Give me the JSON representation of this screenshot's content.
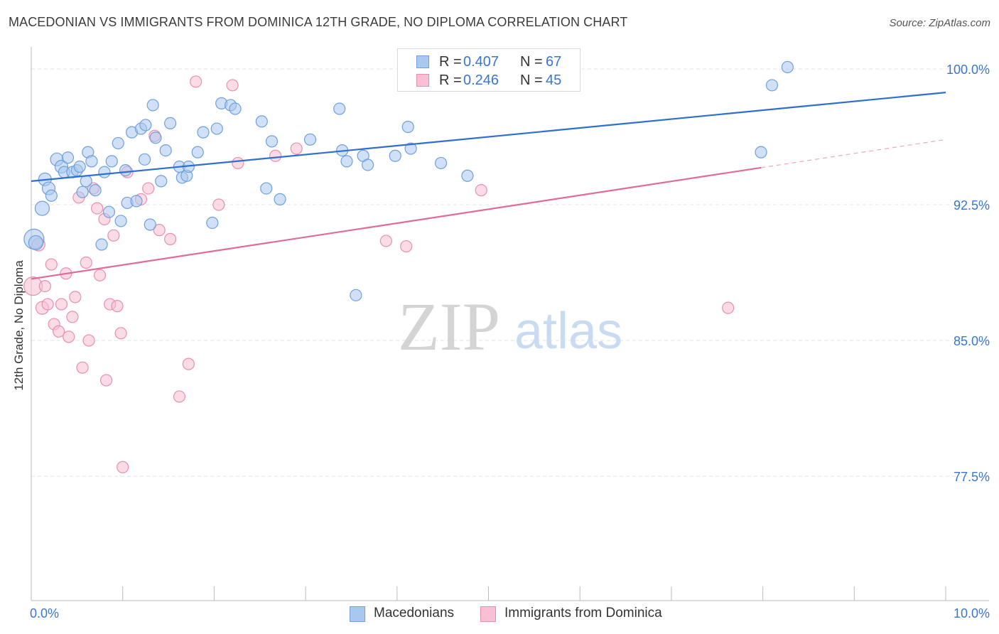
{
  "header": {
    "title": "MACEDONIAN VS IMMIGRANTS FROM DOMINICA 12TH GRADE, NO DIPLOMA CORRELATION CHART",
    "source": "Source: ZipAtlas.com"
  },
  "legend_top": {
    "rows": [
      {
        "r_key": "R =",
        "r_value": "0.407",
        "n_key": "N =",
        "n_value": "67"
      },
      {
        "r_key": "R =",
        "r_value": "0.246",
        "n_key": "N =",
        "n_value": "45"
      }
    ]
  },
  "legend_bottom": {
    "items": [
      {
        "label": "Macedonians"
      },
      {
        "label": "Immigrants from Dominica"
      }
    ]
  },
  "watermark": {
    "zip": "ZIP",
    "atlas": "atlas"
  },
  "colors": {
    "blue_fill": "#a9c8f0",
    "blue_stroke": "#6f9fdc",
    "blue_line": "#2f6fd0",
    "pink_fill": "#f8c0d2",
    "pink_stroke": "#e88faf",
    "pink_line": "#e06b98",
    "tick_label": "#3a76d0",
    "grid": "#e3e3e3"
  },
  "chart_data": {
    "type": "scatter",
    "title": "MACEDONIAN VS IMMIGRANTS FROM DOMINICA 12TH GRADE, NO DIPLOMA CORRELATION CHART",
    "xlabel": "",
    "ylabel": "12th Grade, No Diploma",
    "xlim": [
      0.0,
      10.0
    ],
    "ylim": [
      70.0,
      101.5
    ],
    "x_tick_labels": [
      {
        "value": 0.0,
        "label": "0.0%"
      },
      {
        "value": 10.0,
        "label": "10.0%"
      }
    ],
    "y_ticks": [
      {
        "value": 100.0,
        "label": "100.0%"
      },
      {
        "value": 92.5,
        "label": "92.5%"
      },
      {
        "value": 85.0,
        "label": "85.0%"
      },
      {
        "value": 77.5,
        "label": "77.5%"
      }
    ],
    "series": [
      {
        "name": "Macedonians",
        "R": 0.407,
        "N": 67,
        "trend": {
          "x0": 0.0,
          "y0": 93.8,
          "x1": 10.0,
          "y1": 98.7,
          "dashed_from": null
        },
        "points": [
          [
            0.03,
            90.6,
            14
          ],
          [
            0.05,
            90.4,
            10
          ],
          [
            0.12,
            92.3,
            10
          ],
          [
            0.15,
            93.9,
            9
          ],
          [
            0.19,
            93.4,
            9
          ],
          [
            0.22,
            93.0,
            8
          ],
          [
            0.28,
            95.0,
            9
          ],
          [
            0.33,
            94.6,
            9
          ],
          [
            0.36,
            94.3,
            8
          ],
          [
            0.4,
            95.1,
            8
          ],
          [
            0.45,
            94.3,
            8
          ],
          [
            0.5,
            94.4,
            8
          ],
          [
            0.53,
            94.6,
            8
          ],
          [
            0.56,
            93.2,
            8
          ],
          [
            0.6,
            93.8,
            8
          ],
          [
            0.62,
            95.4,
            8
          ],
          [
            0.66,
            94.9,
            8
          ],
          [
            0.7,
            93.3,
            8
          ],
          [
            0.77,
            90.3,
            8
          ],
          [
            0.8,
            94.3,
            8
          ],
          [
            0.85,
            92.1,
            8
          ],
          [
            0.88,
            94.9,
            8
          ],
          [
            0.95,
            95.9,
            8
          ],
          [
            0.98,
            91.6,
            8
          ],
          [
            1.03,
            94.4,
            8
          ],
          [
            1.05,
            92.6,
            8
          ],
          [
            1.1,
            96.5,
            8
          ],
          [
            1.15,
            92.7,
            8
          ],
          [
            1.2,
            96.7,
            8
          ],
          [
            1.24,
            95.0,
            8
          ],
          [
            1.25,
            96.9,
            8
          ],
          [
            1.3,
            91.4,
            8
          ],
          [
            1.33,
            98.0,
            8
          ],
          [
            1.36,
            96.2,
            8
          ],
          [
            1.42,
            93.8,
            8
          ],
          [
            1.47,
            95.5,
            8
          ],
          [
            1.52,
            97.0,
            8
          ],
          [
            1.62,
            94.6,
            8
          ],
          [
            1.65,
            94.0,
            8
          ],
          [
            1.7,
            94.1,
            8
          ],
          [
            1.72,
            94.6,
            8
          ],
          [
            1.82,
            95.4,
            8
          ],
          [
            1.88,
            96.5,
            8
          ],
          [
            1.98,
            91.5,
            8
          ],
          [
            2.03,
            96.7,
            8
          ],
          [
            2.08,
            98.1,
            8
          ],
          [
            2.18,
            98.0,
            8
          ],
          [
            2.23,
            97.8,
            8
          ],
          [
            2.52,
            97.1,
            8
          ],
          [
            2.57,
            93.4,
            8
          ],
          [
            2.63,
            96.0,
            8
          ],
          [
            2.72,
            92.8,
            8
          ],
          [
            3.05,
            96.1,
            8
          ],
          [
            3.37,
            97.8,
            8
          ],
          [
            3.4,
            95.5,
            8
          ],
          [
            3.45,
            94.9,
            8
          ],
          [
            3.55,
            87.5,
            8
          ],
          [
            3.63,
            95.2,
            8
          ],
          [
            3.68,
            94.7,
            8
          ],
          [
            3.98,
            95.2,
            8
          ],
          [
            4.12,
            96.8,
            8
          ],
          [
            4.15,
            95.6,
            8
          ],
          [
            4.48,
            94.8,
            8
          ],
          [
            4.77,
            94.1,
            8
          ],
          [
            7.98,
            95.4,
            8
          ],
          [
            8.1,
            99.1,
            8
          ],
          [
            8.27,
            100.1,
            8
          ]
        ]
      },
      {
        "name": "Immigrants from Dominica",
        "R": 0.246,
        "N": 45,
        "trend": {
          "x0": 0.0,
          "y0": 88.4,
          "x1": 10.0,
          "y1": 96.1,
          "dashed_from": 7.98
        },
        "points": [
          [
            0.02,
            88.0,
            13
          ],
          [
            0.08,
            90.3,
            9
          ],
          [
            0.12,
            86.8,
            9
          ],
          [
            0.15,
            88.0,
            8
          ],
          [
            0.18,
            87.0,
            8
          ],
          [
            0.22,
            89.2,
            8
          ],
          [
            0.25,
            85.9,
            8
          ],
          [
            0.3,
            85.5,
            8
          ],
          [
            0.33,
            87.0,
            8
          ],
          [
            0.38,
            88.7,
            8
          ],
          [
            0.41,
            85.2,
            8
          ],
          [
            0.45,
            86.3,
            8
          ],
          [
            0.48,
            87.4,
            8
          ],
          [
            0.52,
            92.9,
            8
          ],
          [
            0.56,
            83.5,
            8
          ],
          [
            0.6,
            89.3,
            8
          ],
          [
            0.63,
            85.0,
            8
          ],
          [
            0.68,
            93.4,
            8
          ],
          [
            0.72,
            92.3,
            8
          ],
          [
            0.75,
            88.6,
            8
          ],
          [
            0.8,
            91.7,
            8
          ],
          [
            0.82,
            82.8,
            8
          ],
          [
            0.86,
            87.0,
            8
          ],
          [
            0.9,
            90.8,
            8
          ],
          [
            0.94,
            86.9,
            8
          ],
          [
            0.98,
            85.4,
            8
          ],
          [
            1.0,
            78.0,
            8
          ],
          [
            1.05,
            94.3,
            8
          ],
          [
            1.2,
            92.8,
            8
          ],
          [
            1.28,
            93.4,
            8
          ],
          [
            1.35,
            96.3,
            8
          ],
          [
            1.4,
            91.1,
            8
          ],
          [
            1.52,
            90.6,
            8
          ],
          [
            1.62,
            81.9,
            8
          ],
          [
            1.72,
            83.7,
            8
          ],
          [
            1.8,
            99.3,
            8
          ],
          [
            2.05,
            92.5,
            8
          ],
          [
            2.2,
            99.1,
            8
          ],
          [
            2.26,
            94.8,
            8
          ],
          [
            2.67,
            95.2,
            8
          ],
          [
            2.9,
            95.6,
            8
          ],
          [
            3.88,
            90.5,
            8
          ],
          [
            4.1,
            90.2,
            8
          ],
          [
            4.92,
            93.3,
            8
          ],
          [
            7.62,
            86.8,
            8
          ]
        ]
      }
    ]
  }
}
